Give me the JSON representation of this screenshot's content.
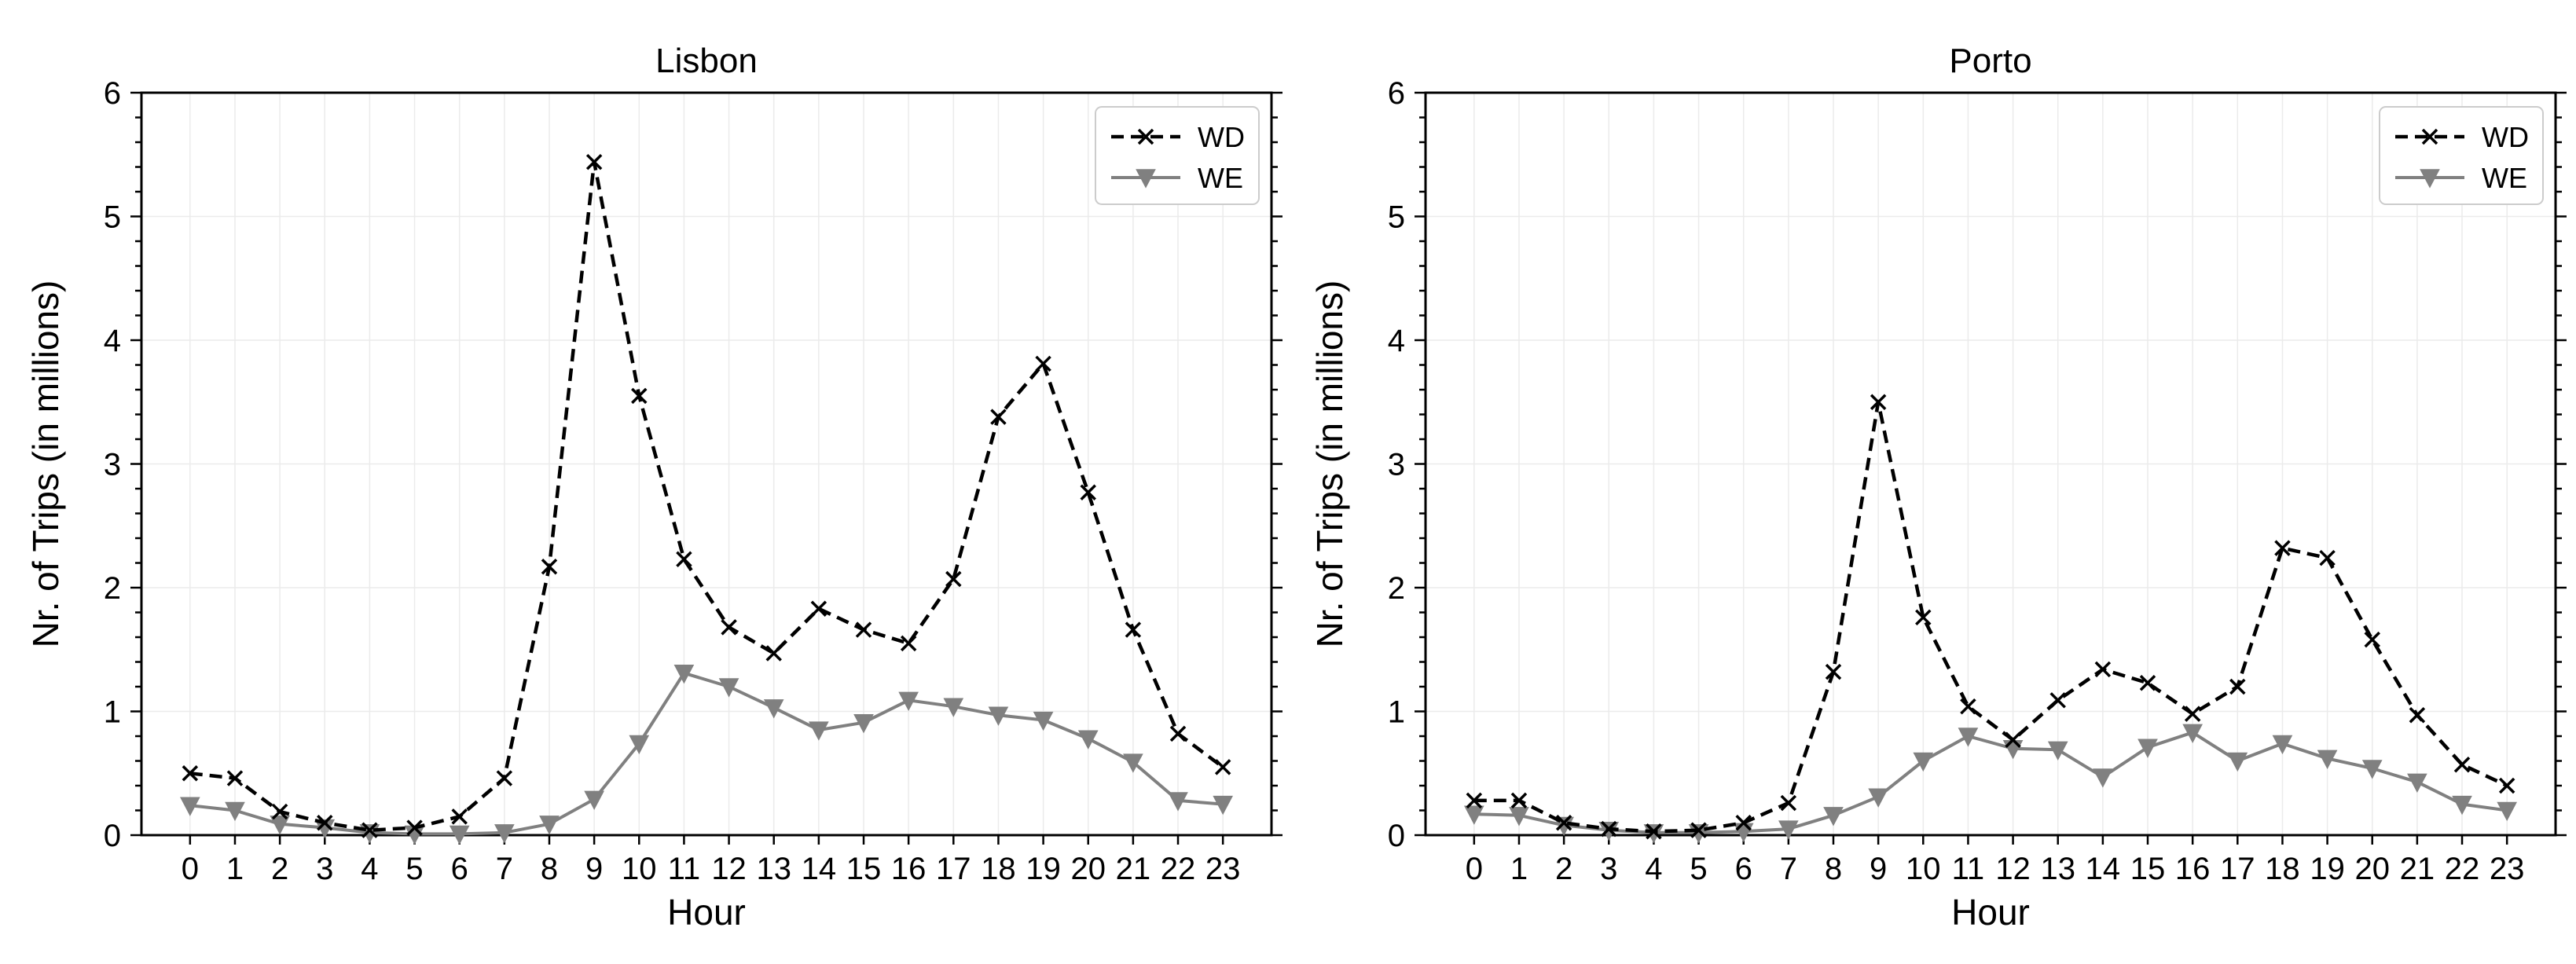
{
  "chart_data": [
    {
      "type": "line",
      "title": "Lisbon",
      "xlabel": "Hour",
      "ylabel": "Nr. of Trips (in millions)",
      "ylim": [
        0,
        6
      ],
      "yticks": [
        "0",
        "1",
        "2",
        "3",
        "4",
        "5",
        "6"
      ],
      "categories": [
        "0",
        "1",
        "2",
        "3",
        "4",
        "5",
        "6",
        "7",
        "8",
        "9",
        "10",
        "11",
        "12",
        "13",
        "14",
        "15",
        "16",
        "17",
        "18",
        "19",
        "20",
        "21",
        "22",
        "23"
      ],
      "legend_position": "top-right",
      "series": [
        {
          "name": "WD",
          "color": "#000000",
          "marker": "x",
          "style": "dashed",
          "values": [
            0.5,
            0.46,
            0.19,
            0.1,
            0.04,
            0.06,
            0.15,
            0.46,
            2.17,
            5.44,
            3.55,
            2.23,
            1.68,
            1.47,
            1.83,
            1.66,
            1.55,
            2.07,
            3.38,
            3.81,
            2.77,
            1.66,
            0.82,
            0.55
          ]
        },
        {
          "name": "WE",
          "color": "#808080",
          "marker": "triangle-down",
          "style": "solid",
          "values": [
            0.24,
            0.2,
            0.09,
            0.06,
            0.02,
            0.01,
            0.01,
            0.02,
            0.09,
            0.29,
            0.74,
            1.31,
            1.2,
            1.03,
            0.85,
            0.91,
            1.09,
            1.04,
            0.97,
            0.93,
            0.78,
            0.59,
            0.28,
            0.25
          ]
        }
      ]
    },
    {
      "type": "line",
      "title": "Porto",
      "xlabel": "Hour",
      "ylabel": "Nr. of Trips (in millions)",
      "ylim": [
        0,
        6
      ],
      "yticks": [
        "0",
        "1",
        "2",
        "3",
        "4",
        "5",
        "6"
      ],
      "categories": [
        "0",
        "1",
        "2",
        "3",
        "4",
        "5",
        "6",
        "7",
        "8",
        "9",
        "10",
        "11",
        "12",
        "13",
        "14",
        "15",
        "16",
        "17",
        "18",
        "19",
        "20",
        "21",
        "22",
        "23"
      ],
      "legend_position": "top-right",
      "series": [
        {
          "name": "WD",
          "color": "#000000",
          "marker": "x",
          "style": "dashed",
          "values": [
            0.28,
            0.28,
            0.1,
            0.05,
            0.03,
            0.04,
            0.1,
            0.26,
            1.32,
            3.5,
            1.76,
            1.04,
            0.77,
            1.09,
            1.34,
            1.23,
            0.98,
            1.2,
            2.32,
            2.24,
            1.58,
            0.97,
            0.57,
            0.4
          ]
        },
        {
          "name": "WE",
          "color": "#808080",
          "marker": "triangle-down",
          "style": "solid",
          "values": [
            0.17,
            0.16,
            0.08,
            0.04,
            0.02,
            0.02,
            0.03,
            0.05,
            0.16,
            0.31,
            0.6,
            0.8,
            0.7,
            0.69,
            0.47,
            0.71,
            0.83,
            0.6,
            0.74,
            0.62,
            0.54,
            0.43,
            0.25,
            0.2
          ]
        }
      ]
    }
  ]
}
